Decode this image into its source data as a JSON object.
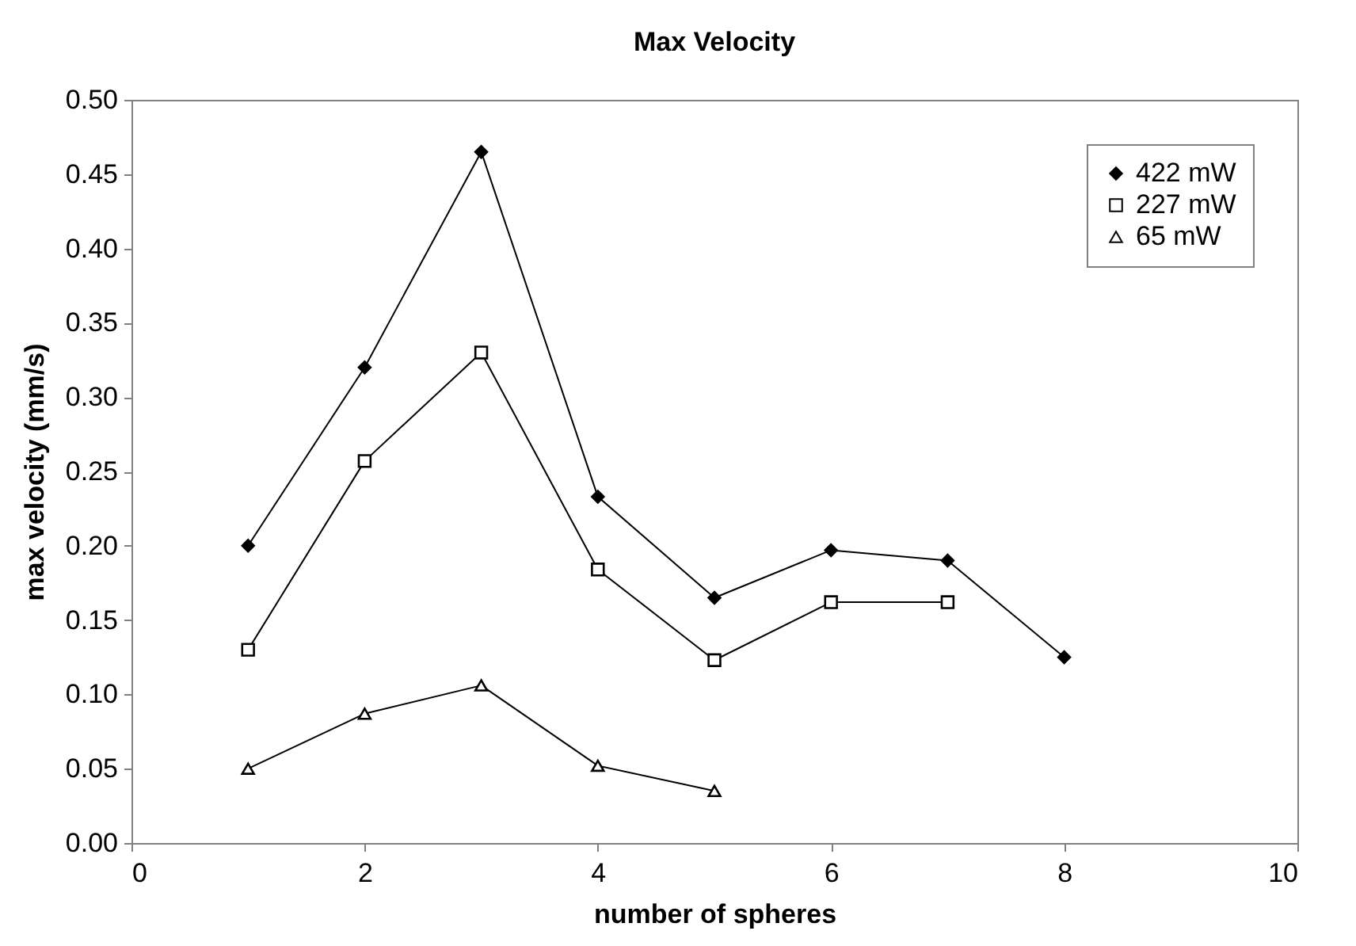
{
  "chart_data": {
    "type": "line",
    "title": "Max Velocity",
    "xlabel": "number of spheres",
    "ylabel": "max velocity (mm/s)",
    "xlim": [
      0,
      10
    ],
    "xticks": [
      0,
      2,
      4,
      6,
      8,
      10
    ],
    "ylim": [
      0,
      0.5
    ],
    "yticks": [
      {
        "value": 0,
        "label": "0.00"
      },
      {
        "value": 0.05,
        "label": "0.05"
      },
      {
        "value": 0.1,
        "label": "0.10"
      },
      {
        "value": 0.15,
        "label": "0.15"
      },
      {
        "value": 0.2,
        "label": "0.20"
      },
      {
        "value": 0.25,
        "label": "0.25"
      },
      {
        "value": 0.3,
        "label": "0.30"
      },
      {
        "value": 0.35,
        "label": "0.35"
      },
      {
        "value": 0.4,
        "label": "0.40"
      },
      {
        "value": 0.45,
        "label": "0.45"
      },
      {
        "value": 0.5,
        "label": "0.50"
      }
    ],
    "grid": false,
    "legend": "top right",
    "line_style": "solid",
    "series": [
      {
        "name": "422 mW",
        "color": "#000000",
        "marker": "diamond",
        "x": [
          1,
          2,
          3,
          4,
          5,
          6,
          7,
          8
        ],
        "values": [
          0.2,
          0.32,
          0.465,
          0.233,
          0.165,
          0.197,
          0.19,
          0.125
        ]
      },
      {
        "name": "227 mW",
        "color": "#000000",
        "marker": "square",
        "x": [
          1,
          2,
          3,
          4,
          5,
          6,
          7
        ],
        "values": [
          0.13,
          0.257,
          0.33,
          0.184,
          0.123,
          0.162,
          0.162
        ]
      },
      {
        "name": "65 mW",
        "color": "#000000",
        "marker": "triangle",
        "x": [
          1,
          2,
          3,
          4,
          5
        ],
        "values": [
          0.05,
          0.087,
          0.106,
          0.052,
          0.035
        ]
      }
    ]
  }
}
